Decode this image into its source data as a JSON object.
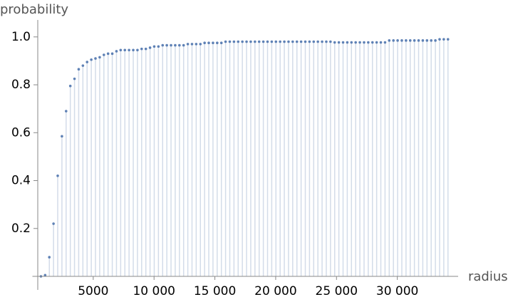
{
  "chart_data": {
    "type": "stem",
    "x_label": "radius",
    "y_label": "probability",
    "x_start": 700,
    "x_step": 345,
    "values": [
      0,
      0.005,
      0.08,
      0.22,
      0.42,
      0.585,
      0.69,
      0.795,
      0.825,
      0.865,
      0.88,
      0.895,
      0.905,
      0.91,
      0.915,
      0.925,
      0.93,
      0.93,
      0.94,
      0.945,
      0.945,
      0.945,
      0.945,
      0.945,
      0.95,
      0.95,
      0.955,
      0.96,
      0.96,
      0.965,
      0.965,
      0.965,
      0.965,
      0.965,
      0.965,
      0.97,
      0.97,
      0.97,
      0.97,
      0.975,
      0.975,
      0.975,
      0.975,
      0.975,
      0.98,
      0.98,
      0.98,
      0.98,
      0.98,
      0.98,
      0.98,
      0.98,
      0.98,
      0.98,
      0.98,
      0.98,
      0.98,
      0.98,
      0.98,
      0.98,
      0.98,
      0.98,
      0.98,
      0.98,
      0.98,
      0.98,
      0.98,
      0.98,
      0.98,
      0.98,
      0.977,
      0.977,
      0.977,
      0.977,
      0.977,
      0.977,
      0.977,
      0.977,
      0.977,
      0.977,
      0.977,
      0.977,
      0.977,
      0.985,
      0.985,
      0.985,
      0.985,
      0.985,
      0.985,
      0.985,
      0.985,
      0.985,
      0.985,
      0.985,
      0.985,
      0.99,
      0.99,
      0.99
    ],
    "color": "#5e81b5",
    "stem_color": "#d3dce9",
    "xlim": [
      0,
      35000
    ],
    "ylim": [
      0,
      1.05
    ],
    "xticks": [
      5000,
      {
        "value": 10000,
        "label": "10 000"
      },
      {
        "value": 15000,
        "label": "15 000"
      },
      {
        "value": 20000,
        "label": "20 000"
      },
      {
        "value": 25000,
        "label": "25 000"
      },
      {
        "value": 30000,
        "label": "30 000"
      }
    ],
    "yticks": [
      0.2,
      0.4,
      0.6,
      0.8,
      {
        "value": 1,
        "label": "1.0"
      }
    ]
  }
}
